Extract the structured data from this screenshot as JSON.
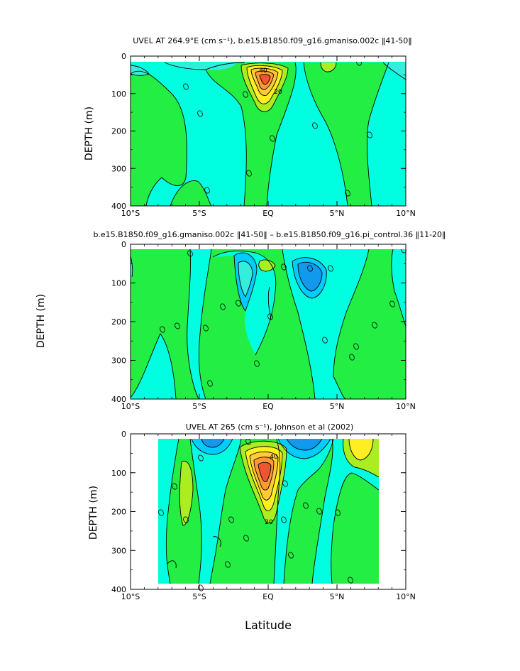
{
  "chart_data": [
    {
      "type": "contour",
      "title": "UVEL AT 264.9°E (cm s⁻¹), b.e15.B1850.f09_g16.gmaniso.002c ‖41-50‖",
      "xlabel": "",
      "ylabel": "DEPTH (m)",
      "x_ticks": [
        "10°S",
        "5°S",
        "EQ",
        "5°N",
        "10°N"
      ],
      "y_ticks": [
        "0",
        "100",
        "200",
        "300",
        "400"
      ],
      "xlim": [
        -10,
        10
      ],
      "ylim": [
        400,
        0
      ],
      "contour_labels": [
        "0",
        "0",
        "0",
        "0",
        "0",
        "0",
        "0",
        "0",
        "20",
        "40"
      ],
      "core": {
        "lat": 0,
        "depth": 70,
        "max_value": 40
      }
    },
    {
      "type": "contour",
      "title": "b.e15.B1850.f09_g16.gmaniso.002c ‖41-50‖ – b.e15.B1850.f09_g16.pi_control.36 ‖11-20‖",
      "xlabel": "",
      "ylabel": "DEPTH (m)",
      "x_ticks": [
        "10°S",
        "5°S",
        "EQ",
        "5°N",
        "10°N"
      ],
      "y_ticks": [
        "0",
        "100",
        "200",
        "300",
        "400"
      ],
      "xlim": [
        -10,
        10
      ],
      "ylim": [
        400,
        0
      ],
      "contour_labels": [
        "0",
        "0",
        "0",
        "0",
        "0",
        "0",
        "0",
        "0",
        "0",
        "0",
        "0",
        "0",
        "0",
        "0"
      ]
    },
    {
      "type": "contour",
      "title": "UVEL AT 265 (cm s⁻¹), Johnson et al (2002)",
      "xlabel": "Latitude",
      "ylabel": "DEPTH (m)",
      "x_ticks": [
        "10°S",
        "5°S",
        "EQ",
        "5°N",
        "10°N"
      ],
      "y_ticks": [
        "0",
        "100",
        "200",
        "300",
        "400"
      ],
      "xlim": [
        -10,
        10
      ],
      "ylim": [
        400,
        0
      ],
      "contour_labels": [
        "0",
        "0",
        "0",
        "0",
        "0",
        "0",
        "0",
        "0",
        "0",
        "0",
        "0",
        "0",
        "20",
        "40"
      ],
      "core": {
        "lat": 0,
        "depth": 70,
        "max_value": 40
      }
    }
  ],
  "colors": {
    "green": "#22ee44",
    "cyan": "#00ffe0",
    "light_cyan": "#33eedd",
    "blue1": "#00ccff",
    "blue2": "#1199ee",
    "yellowgreen": "#aaee22",
    "yellow": "#ffee22",
    "orange1": "#ffcc33",
    "orange2": "#ff9933",
    "red": "#ee5533"
  }
}
